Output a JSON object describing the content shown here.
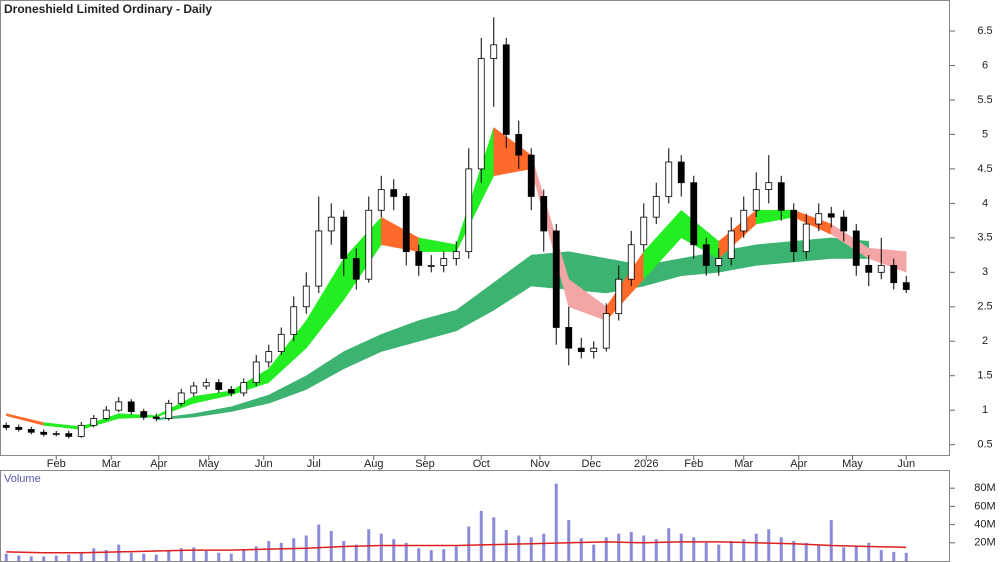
{
  "chart_data": [
    {
      "type": "candlestick",
      "title": "Droneshield Limited Ordinary - Daily",
      "open": [
        0.78,
        0.75,
        0.72,
        0.68,
        0.65,
        0.66,
        0.62,
        0.78,
        0.88,
        1.0,
        1.12,
        0.98,
        0.9,
        0.88,
        1.1,
        1.25,
        1.35,
        1.4,
        1.3,
        1.25,
        1.4,
        1.7,
        1.85,
        2.1,
        2.5,
        2.8,
        3.6,
        3.8,
        3.2,
        2.9,
        3.9,
        4.2,
        4.1,
        3.3,
        3.1,
        3.1,
        3.2,
        3.3,
        4.5,
        6.1,
        6.3,
        5.0,
        4.7,
        4.1,
        3.6,
        2.2,
        1.9,
        1.85,
        1.9,
        2.4,
        2.9,
        3.4,
        3.8,
        4.1,
        4.6,
        4.3,
        3.4,
        3.1,
        3.2,
        3.6,
        3.9,
        4.2,
        4.3,
        3.9,
        3.3,
        3.7,
        3.85,
        3.8,
        3.6,
        3.1,
        3.0,
        3.1,
        2.85
      ],
      "high": [
        0.82,
        0.79,
        0.76,
        0.72,
        0.7,
        0.7,
        0.83,
        0.93,
        1.06,
        1.19,
        1.16,
        1.02,
        0.95,
        1.15,
        1.31,
        1.41,
        1.46,
        1.45,
        1.35,
        1.46,
        1.8,
        1.95,
        2.2,
        2.65,
        3.0,
        4.1,
        4.0,
        3.9,
        3.35,
        4.1,
        4.4,
        4.35,
        4.15,
        3.4,
        3.25,
        3.3,
        3.45,
        4.8,
        6.4,
        6.7,
        6.4,
        5.2,
        4.8,
        4.2,
        3.7,
        2.5,
        2.05,
        2.0,
        2.55,
        3.1,
        3.6,
        4.0,
        4.3,
        4.8,
        4.7,
        4.4,
        3.5,
        3.35,
        3.8,
        4.1,
        4.45,
        4.7,
        4.4,
        4.0,
        3.85,
        4.0,
        3.95,
        3.9,
        3.7,
        3.25,
        3.5,
        3.2,
        2.95
      ],
      "low": [
        0.71,
        0.69,
        0.65,
        0.62,
        0.62,
        0.59,
        0.6,
        0.75,
        0.85,
        0.97,
        0.94,
        0.86,
        0.84,
        0.85,
        1.06,
        1.2,
        1.3,
        1.25,
        1.2,
        1.2,
        1.35,
        1.62,
        1.8,
        2.0,
        2.4,
        2.7,
        3.4,
        2.95,
        2.75,
        2.85,
        3.8,
        3.9,
        3.1,
        2.95,
        3.0,
        3.0,
        3.1,
        3.2,
        4.3,
        5.4,
        4.8,
        4.5,
        3.9,
        3.3,
        1.95,
        1.65,
        1.75,
        1.75,
        1.85,
        2.3,
        2.8,
        3.3,
        3.7,
        4.0,
        4.1,
        3.2,
        2.95,
        2.95,
        3.1,
        3.5,
        3.8,
        4.0,
        3.75,
        3.15,
        3.2,
        3.6,
        3.65,
        3.45,
        2.95,
        2.8,
        2.9,
        2.75,
        2.7
      ],
      "close": [
        0.75,
        0.72,
        0.68,
        0.65,
        0.66,
        0.62,
        0.78,
        0.88,
        1.0,
        1.12,
        0.98,
        0.9,
        0.88,
        1.1,
        1.25,
        1.35,
        1.4,
        1.3,
        1.25,
        1.4,
        1.7,
        1.85,
        2.1,
        2.5,
        2.8,
        3.6,
        3.8,
        3.2,
        2.9,
        3.9,
        4.2,
        4.1,
        3.3,
        3.1,
        3.1,
        3.2,
        3.3,
        4.5,
        6.1,
        6.3,
        5.0,
        4.7,
        4.1,
        3.6,
        2.2,
        1.9,
        1.85,
        1.9,
        2.4,
        2.9,
        3.4,
        3.8,
        4.1,
        4.6,
        4.3,
        3.4,
        3.1,
        3.2,
        3.6,
        3.9,
        4.2,
        4.3,
        3.9,
        3.3,
        3.7,
        3.85,
        3.8,
        3.6,
        3.1,
        3.0,
        3.1,
        2.85,
        2.75
      ],
      "up_color": "#ffffff",
      "down_color": "#000000",
      "ylim": [
        0.35,
        6.95
      ],
      "yticks": [
        0.5,
        1.0,
        1.5,
        2.0,
        2.5,
        3.0,
        3.5,
        4.0,
        4.5,
        5.0,
        5.5,
        6.0,
        6.5
      ],
      "xlim": [
        -0.5,
        75.5
      ],
      "xticks": [
        {
          "value": 4,
          "label": "Feb"
        },
        {
          "value": 8.4,
          "label": "Mar"
        },
        {
          "value": 12.2,
          "label": "Apr"
        },
        {
          "value": 16.2,
          "label": "May"
        },
        {
          "value": 20.6,
          "label": "Jun"
        },
        {
          "value": 24.6,
          "label": "Jul"
        },
        {
          "value": 29.4,
          "label": "Aug"
        },
        {
          "value": 33.5,
          "label": "Sep"
        },
        {
          "value": 38,
          "label": "Oct"
        },
        {
          "value": 42.7,
          "label": "Nov"
        },
        {
          "value": 46.8,
          "label": "Dec"
        },
        {
          "value": 51.2,
          "label": "2026"
        },
        {
          "value": 55,
          "label": "Feb"
        },
        {
          "value": 59,
          "label": "Mar"
        },
        {
          "value": 63.4,
          "label": "Apr"
        },
        {
          "value": 67.7,
          "label": "May"
        },
        {
          "value": 72,
          "label": "Jun"
        }
      ],
      "ribbon_x": [
        0,
        3,
        6,
        9,
        12,
        15,
        18,
        21,
        24,
        27,
        30,
        33,
        36,
        39,
        42,
        45,
        48,
        51,
        54,
        57,
        60,
        63,
        66,
        69,
        72
      ],
      "ribbons": [
        {
          "upper": [
            null,
            null,
            null,
            null,
            0.88,
            0.95,
            1.05,
            1.22,
            1.5,
            1.85,
            2.1,
            2.3,
            2.45,
            2.85,
            3.25,
            3.3,
            3.2,
            3.1,
            3.2,
            3.3,
            3.4,
            3.45,
            3.5,
            3.45,
            null
          ],
          "lower": [
            null,
            null,
            null,
            null,
            0.86,
            0.9,
            0.98,
            1.1,
            1.3,
            1.6,
            1.85,
            2.0,
            2.15,
            2.45,
            2.8,
            2.75,
            2.7,
            2.8,
            2.95,
            3.0,
            3.1,
            3.15,
            3.2,
            3.2,
            null
          ],
          "colors": [
            "#3cb371",
            "#3cb371",
            "#3cb371",
            "#3cb371",
            "#3cb371",
            "#3cb371",
            "#3cb371",
            "#3cb371",
            "#3cb371",
            "#3cb371",
            "#3cb371",
            "#3cb371",
            "#3cb371",
            "#3cb371",
            "#3cb371",
            "#3cb371",
            "#3cb371",
            "#3cb371",
            "#3cb371",
            "#3cb371",
            "#3cb371",
            "#3cb371",
            "#3cb371",
            "#3cb371",
            "#3cb371"
          ]
        },
        {
          "upper": [
            0.95,
            0.82,
            0.76,
            0.95,
            0.92,
            1.2,
            1.28,
            1.6,
            2.3,
            3.2,
            3.8,
            3.5,
            3.4,
            5.1,
            4.7,
            2.9,
            2.5,
            3.3,
            3.9,
            3.45,
            3.9,
            3.9,
            3.7,
            3.35,
            3.3
          ],
          "lower": [
            0.92,
            0.78,
            0.72,
            0.88,
            0.9,
            1.1,
            1.22,
            1.4,
            1.9,
            2.6,
            3.4,
            3.3,
            3.3,
            4.4,
            4.5,
            2.5,
            2.3,
            2.9,
            3.5,
            3.2,
            3.7,
            3.8,
            3.55,
            3.2,
            3.0
          ],
          "colors": [
            "#ff6a2a",
            "#22ee22",
            "#22ee22",
            "#22ee22",
            "#22ee22",
            "#22ee22",
            "#22ee22",
            "#22ee22",
            "#22ee22",
            "#22ee22",
            "#ff6a2a",
            "#22ee22",
            "#22ee22",
            "#ff6a2a",
            "#f4a6a6",
            "#f4a6a6",
            "#ff6a2a",
            "#22ee22",
            "#22ee22",
            "#ff6a2a",
            "#22ee22",
            "#ff6a2a",
            "#f4a6a6",
            "#f4a6a6",
            "#f4a6a6"
          ]
        }
      ]
    },
    {
      "type": "bar",
      "title": "Volume",
      "values": [
        8,
        6,
        5,
        5,
        6,
        7,
        10,
        14,
        12,
        18,
        9,
        8,
        7,
        12,
        14,
        15,
        11,
        9,
        8,
        13,
        16,
        22,
        20,
        25,
        28,
        40,
        33,
        22,
        18,
        35,
        30,
        24,
        20,
        14,
        12,
        13,
        16,
        38,
        55,
        48,
        34,
        28,
        26,
        30,
        85,
        45,
        25,
        18,
        26,
        30,
        32,
        28,
        24,
        36,
        30,
        26,
        20,
        18,
        22,
        24,
        30,
        35,
        26,
        22,
        20,
        18,
        45,
        15,
        16,
        20,
        12,
        10,
        9
      ],
      "color": "#8a8ad8",
      "ylim": [
        0,
        100
      ],
      "yticks": [
        {
          "value": 20,
          "label": "20M"
        },
        {
          "value": 40,
          "label": "40M"
        },
        {
          "value": 60,
          "label": "60M"
        },
        {
          "value": 80,
          "label": "80M"
        }
      ],
      "line": {
        "values": [
          10,
          9,
          9,
          10,
          11,
          12,
          12,
          13,
          14,
          16,
          17,
          17,
          17,
          18,
          19,
          20,
          21,
          20,
          21,
          21,
          20,
          19,
          17,
          16,
          15
        ],
        "color": "#dd2020"
      }
    }
  ]
}
